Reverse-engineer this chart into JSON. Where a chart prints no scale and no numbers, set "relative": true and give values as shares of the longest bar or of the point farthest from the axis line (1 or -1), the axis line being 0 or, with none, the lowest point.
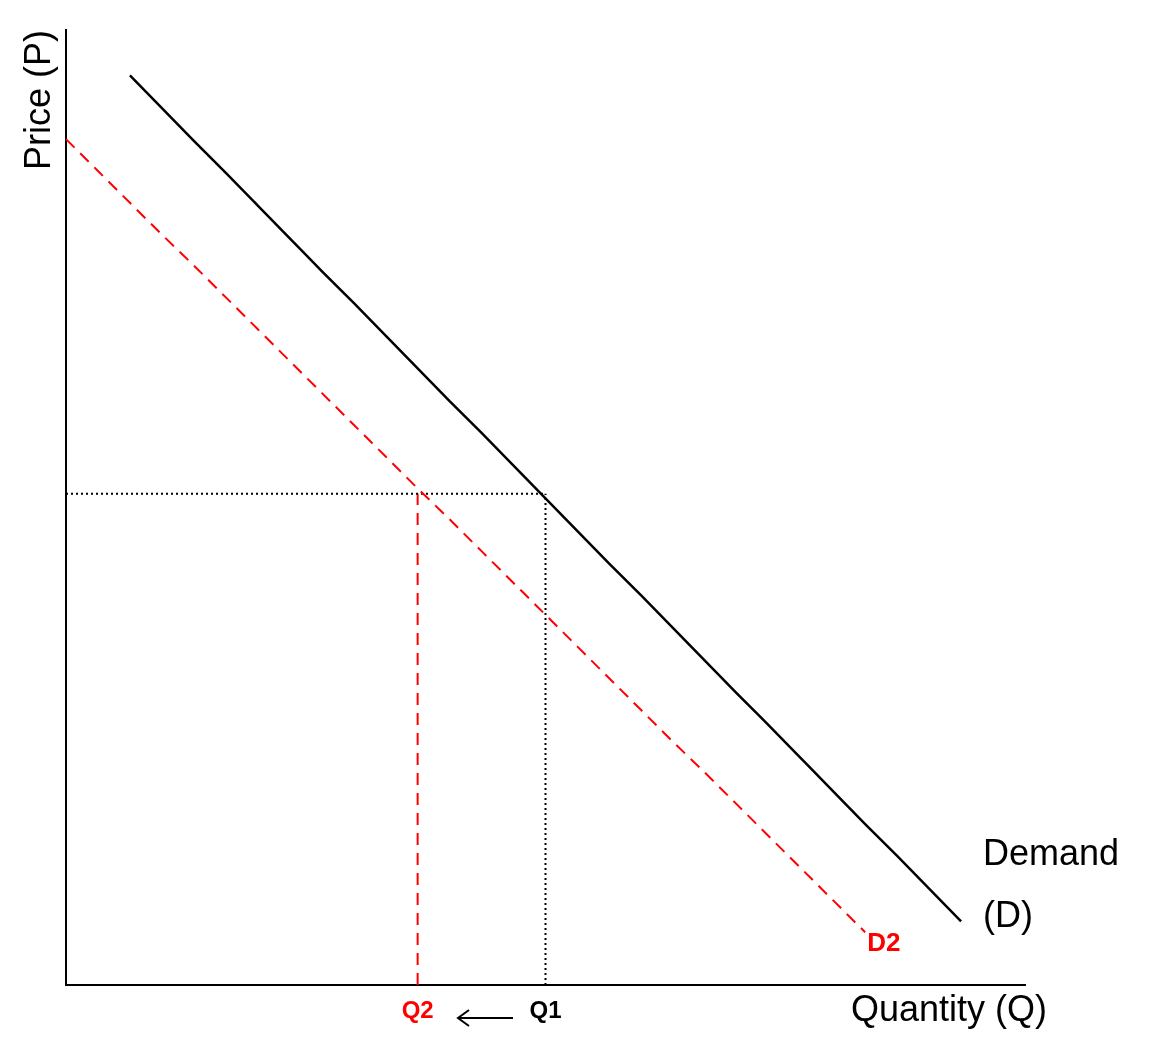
{
  "chart_data": {
    "type": "line",
    "relative": true,
    "xlabel": "Quantity (Q)",
    "ylabel": "Price (P)",
    "grid": false,
    "legend": false,
    "marker": "none",
    "categories": [
      null,
      null,
      null,
      null,
      null,
      null,
      null,
      null,
      null,
      null,
      null,
      "Q2",
      null,
      null,
      null,
      "Q1",
      null,
      null,
      null,
      null,
      null,
      null,
      null,
      null,
      null,
      null,
      null,
      null,
      null,
      null,
      null
    ],
    "series": [
      {
        "name": "Demand (D)",
        "color": "#000000",
        "line_style": "solid",
        "values": [
          null,
          null,
          1,
          0.964,
          0.928,
          0.893,
          0.857,
          0.821,
          0.785,
          0.75,
          0.714,
          0.678,
          0.642,
          0.607,
          0.571,
          0.535,
          0.499,
          0.463,
          0.428,
          0.392,
          0.356,
          0.32,
          0.285,
          0.249,
          0.213,
          0.177,
          0.142,
          0.106,
          0.07,
          null,
          null
        ]
      },
      {
        "name": "D2",
        "color": "#ff0000",
        "line_style": "dashed",
        "values": [
          0.93,
          0.895,
          0.86,
          0.825,
          0.791,
          0.756,
          0.721,
          0.686,
          0.651,
          0.616,
          0.581,
          0.546,
          0.512,
          0.477,
          0.442,
          0.407,
          0.372,
          0.337,
          0.302,
          0.267,
          0.233,
          0.198,
          0.163,
          0.128,
          0.093,
          0.058,
          null,
          null,
          null,
          null,
          null
        ]
      },
      {
        "color": "#000000",
        "line_style": "dotted",
        "values": [
          0.54,
          0.54,
          0.54,
          0.54,
          0.54,
          0.54,
          0.54,
          0.54,
          0.54,
          0.54,
          0.54,
          0.54,
          0.54,
          0.54,
          0.54,
          0.54,
          null,
          null,
          null,
          null,
          null,
          null,
          null,
          null,
          null,
          null,
          null,
          null,
          null,
          null,
          null
        ]
      }
    ],
    "ref_lines": [
      {
        "axis": "x",
        "value": "Q2",
        "color": "#ff0000",
        "line_style": "dashed"
      },
      {
        "axis": "x",
        "value": "Q1",
        "color": "#000000",
        "line_style": "dotted"
      }
    ]
  }
}
